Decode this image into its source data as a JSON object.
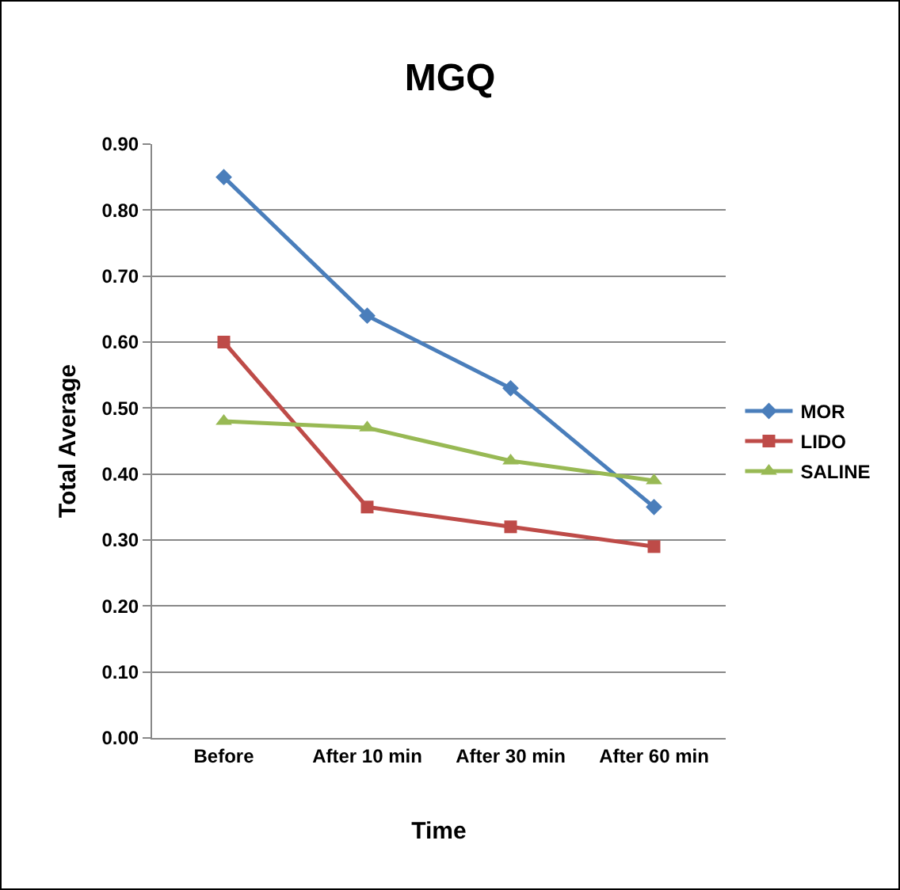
{
  "chart_data": {
    "type": "line",
    "title": "MGQ",
    "xlabel": "Time",
    "ylabel": "Total Average",
    "categories": [
      "Before",
      "After 10 min",
      "After 30 min",
      "After 60 min"
    ],
    "series": [
      {
        "name": "MOR",
        "color": "#4a7ebb",
        "marker": "diamond",
        "values": [
          0.85,
          0.64,
          0.53,
          0.35
        ]
      },
      {
        "name": "LIDO",
        "color": "#be4b48",
        "marker": "square",
        "values": [
          0.6,
          0.35,
          0.32,
          0.29
        ]
      },
      {
        "name": "SALINE",
        "color": "#98b954",
        "marker": "triangle",
        "values": [
          0.48,
          0.47,
          0.42,
          0.39
        ]
      }
    ],
    "ylim": [
      0,
      0.9
    ],
    "yticks": [
      {
        "value": 0,
        "label": "0.00"
      },
      {
        "value": 0.1,
        "label": "0.10"
      },
      {
        "value": 0.2,
        "label": "0.20"
      },
      {
        "value": 0.3,
        "label": "0.30"
      },
      {
        "value": 0.4,
        "label": "0.40"
      },
      {
        "value": 0.5,
        "label": "0.50"
      },
      {
        "value": 0.6,
        "label": "0.60"
      },
      {
        "value": 0.7,
        "label": "0.70"
      },
      {
        "value": 0.8,
        "label": "0.80"
      },
      {
        "value": 0.9,
        "label": "0.90"
      }
    ],
    "grid": "y",
    "legend": "right",
    "line_style": "solid"
  }
}
